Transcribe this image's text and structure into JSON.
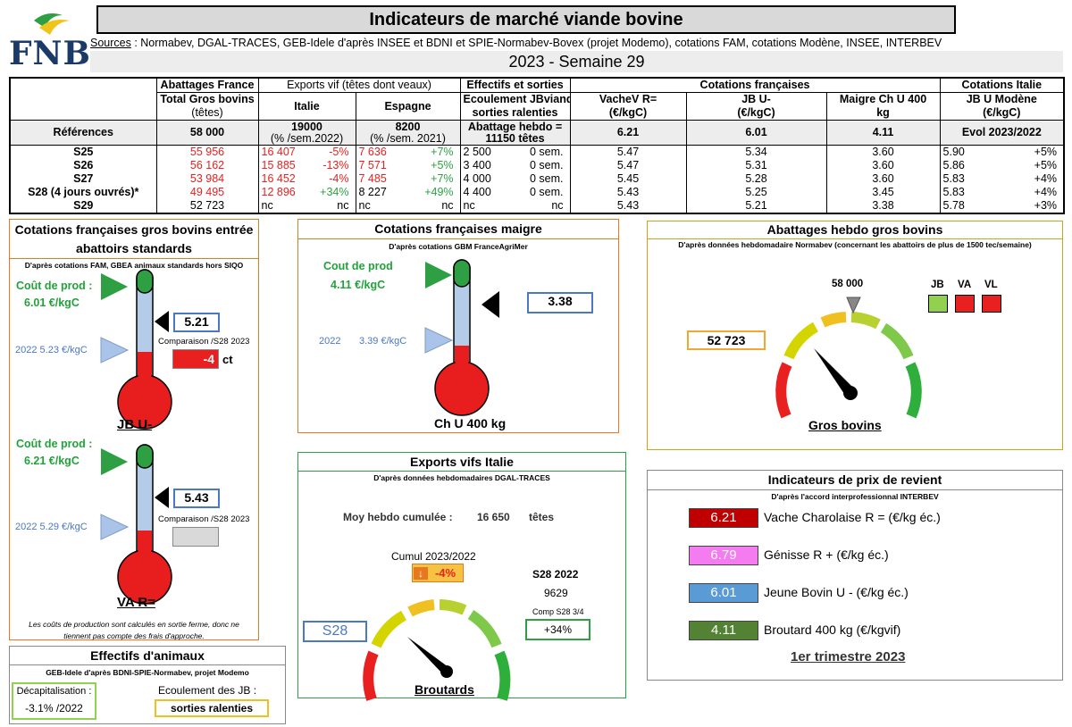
{
  "header": {
    "logo_text": "FNB",
    "title": "Indicateurs de marché viande bovine",
    "sources_label": "Sources",
    "sources_text": " : Normabev, DGAL-TRACES, GEB-Idele d'après INSEE et BDNI et SPIE-Normabev-Bovex (projet Modemo), cotations FAM, cotations Modène, INSEE, INTERBEV",
    "week": "2023 - Semaine 29"
  },
  "table": {
    "groups": [
      "Abattages France",
      "Exports vif (têtes dont veaux)",
      "Effectifs et sorties",
      "Cotations françaises",
      "Cotations Italie"
    ],
    "sub1": [
      "Total Gros bovins",
      "Italie",
      "Espagne",
      "Ecoulement JBviande :",
      "VacheV R=",
      "JB U-",
      "Maigre Ch U 400",
      "JB U Modène"
    ],
    "sub2": [
      "(têtes)",
      "",
      "",
      "sorties ralenties",
      "(€/kgC)",
      "(€/kgC)",
      "kg",
      "(€/kgC)"
    ],
    "ref": {
      "label": "Références",
      "abattages": "58 000",
      "italie_1": "19000",
      "italie_2": "(% /sem.2022)",
      "espagne_1": "8200",
      "espagne_2": "(% /sem. 2021)",
      "effectifs_1": "Abattage hebdo =",
      "effectifs_2": "11150 têtes",
      "vache": "6.21",
      "jb": "6.01",
      "maigre": "4.11",
      "italie_cot": "Evol 2023/2022"
    },
    "rows": [
      {
        "week": "S25",
        "abat": "55 956",
        "it": "16 407",
        "itp": "-5%",
        "es": "7 636",
        "esp": "+7%",
        "eff": "2 500",
        "effs": "0 sem.",
        "vache": "5.47",
        "jb": "5.34",
        "maigre": "3.60",
        "mod": "5.90",
        "modp": "+5%"
      },
      {
        "week": "S26",
        "abat": "56 162",
        "it": "15 885",
        "itp": "-13%",
        "es": "7 571",
        "esp": "+5%",
        "eff": "3 400",
        "effs": "0 sem.",
        "vache": "5.47",
        "jb": "5.31",
        "maigre": "3.60",
        "mod": "5.86",
        "modp": "+5%"
      },
      {
        "week": "S27",
        "abat": "53 984",
        "it": "16 452",
        "itp": "-4%",
        "es": "7 485",
        "esp": "+7%",
        "eff": "4 000",
        "effs": "0 sem.",
        "vache": "5.45",
        "jb": "5.28",
        "maigre": "3.60",
        "mod": "5.83",
        "modp": "+4%"
      },
      {
        "week": "S28 (4 jours ouvrés)*",
        "abat": "49 495",
        "it": "12 896",
        "itp": "+34%",
        "es": "8 227",
        "esp": "+49%",
        "eff": "4 400",
        "effs": "0 sem.",
        "vache": "5.43",
        "jb": "5.25",
        "maigre": "3.45",
        "mod": "5.83",
        "modp": "+4%"
      },
      {
        "week": "S29",
        "abat": "52 723",
        "it": "nc",
        "itp": "nc",
        "es": "nc",
        "esp": "nc",
        "eff": "nc",
        "effs": "nc",
        "vache": "5.43",
        "jb": "5.21",
        "maigre": "3.38",
        "mod": "5.78",
        "modp": "+3%"
      }
    ]
  },
  "gros_bovins": {
    "title_1": "Cotations françaises gros bovins entrée",
    "title_2": "abattoirs standards",
    "subtitle": "D'après cotations FAM, GBEA animaux standards hors SIQO",
    "jb": {
      "cout_label": "Coût de prod :",
      "cout_value": "6.01 €/kgC",
      "value": "5.21",
      "ref_2022": "2022   5.23 €/kgC",
      "comparaison": "Comparaison /S28 2023",
      "diff": "-4",
      "unit": "ct",
      "label": "JB U-"
    },
    "va": {
      "cout_label": "Coût de prod :",
      "cout_value": "6.21 €/kgC",
      "value": "5.43",
      "ref_2022": "2022   5.29 €/kgC",
      "comparaison": "Comparaison /S28 2023",
      "diff": "",
      "label": "VA R="
    },
    "note_1": "Les coûts de production sont calculés en sortie ferme, donc ne",
    "note_2": "tiennent pas compte des frais d'approche."
  },
  "maigre": {
    "title": "Cotations françaises maigre",
    "subtitle": "D'après cotations GBM FranceAgriMer",
    "cout_label": "Cout de prod",
    "cout_value": "4.11 €/kgC",
    "ref_2022_year": "2022",
    "ref_2022_value": "3.39 €/kgC",
    "value": "3.38",
    "label": "Ch U 400 kg"
  },
  "abattages": {
    "title": "Abattages hebdo gros bovins",
    "subtitle": "D'après données hebdomadaire Normabev (concernant les abattoirs de plus de 1500 tec/semaine)",
    "reference": "58 000",
    "value": "52 723",
    "label": "Gros bovins",
    "legend": [
      {
        "label": "JB",
        "color": "#92d050"
      },
      {
        "label": "VA",
        "color": "#e8201f"
      },
      {
        "label": "VL",
        "color": "#e8201f"
      }
    ]
  },
  "exports": {
    "title": "Exports vifs  Italie",
    "subtitle": "D'après données hebdomadaires DGAL-TRACES",
    "moy_label": "Moy hebdo cumulée :",
    "moy_value": "16 650",
    "moy_unit": "têtes",
    "cumul_label": "Cumul 2023/2022",
    "cumul_value": "-4%",
    "s28_label": "S28 2022",
    "s28_value": "9629",
    "comp_label": "Comp S28 3/4",
    "comp_value": "+34%",
    "week": "S28",
    "label": "Broutards"
  },
  "effectifs": {
    "title": "Effectifs d'animaux",
    "subtitle": "GEB-Idele d'après BDNI-SPIE-Normabev, projet Modemo",
    "decap_label": "Décapitalisation :",
    "decap_value": "-3.1% /2022",
    "ecoul_label": "Ecoulement des JB :",
    "ecoul_value": "sorties ralenties"
  },
  "revient": {
    "title": "Indicateurs de prix de revient",
    "subtitle": "D'après l'accord interprofessionnal INTERBEV",
    "items": [
      {
        "value": "6.21",
        "label": "Vache Charolaise R = (€/kg éc.)",
        "color": "#c00000",
        "text_color": "#ffffff"
      },
      {
        "value": "6.79",
        "label": "Génisse R + (€/kg éc.)",
        "color": "#f47cf0",
        "text_color": "#ffffff"
      },
      {
        "value": "6.01",
        "label": "Jeune Bovin U - (€/kg éc.)",
        "color": "#5b9bd5",
        "text_color": "#ffffff"
      },
      {
        "value": "4.11",
        "label": "Broutard 400 kg (€/kgvif)",
        "color": "#548235",
        "text_color": "#ffffff"
      }
    ],
    "period": "1er trimestre 2023"
  },
  "colors": {
    "orange": "#e8781f",
    "green_border": "#2ea043",
    "gold": "#d4a017",
    "blue": "#4a78c2",
    "red": "#e8201f"
  }
}
